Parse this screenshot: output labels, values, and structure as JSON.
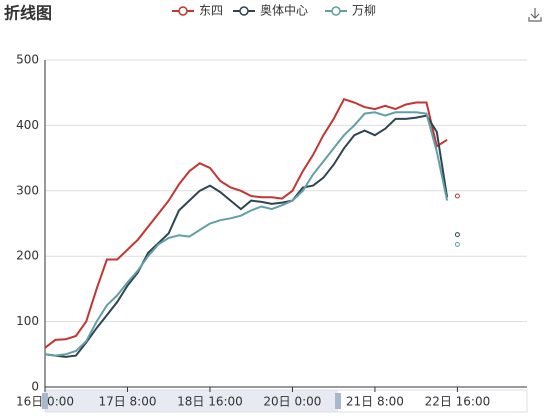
{
  "chart_data": {
    "type": "line",
    "title": "折线图",
    "x": [
      0,
      4,
      8,
      12,
      16,
      20,
      24,
      28,
      32,
      36,
      40,
      44,
      48,
      52,
      56,
      60,
      64,
      68,
      72,
      76,
      80,
      84,
      88,
      92,
      96,
      100,
      104,
      108,
      112,
      116,
      120,
      124,
      128,
      132,
      136,
      140,
      144,
      148,
      152,
      156,
      158,
      160
    ],
    "series": [
      {
        "name": "东四",
        "color": "#c23531",
        "values": [
          60,
          72,
          73,
          78,
          100,
          150,
          195,
          195,
          210,
          225,
          245,
          265,
          285,
          310,
          330,
          342,
          335,
          315,
          305,
          300,
          292,
          290,
          290,
          288,
          300,
          330,
          355,
          385,
          410,
          440,
          435,
          428,
          425,
          430,
          425,
          432,
          435,
          435,
          368,
          378,
          null,
          292
        ]
      },
      {
        "name": "奥体中心",
        "color": "#2f4554",
        "values": [
          50,
          48,
          46,
          48,
          68,
          90,
          110,
          130,
          155,
          175,
          205,
          220,
          235,
          270,
          285,
          300,
          308,
          298,
          285,
          272,
          285,
          283,
          280,
          282,
          285,
          305,
          308,
          320,
          340,
          365,
          385,
          392,
          385,
          395,
          410,
          410,
          412,
          415,
          390,
          290,
          null,
          233
        ]
      },
      {
        "name": "万柳",
        "color": "#61a0a8",
        "values": [
          50,
          48,
          50,
          55,
          70,
          100,
          125,
          140,
          160,
          178,
          200,
          218,
          228,
          232,
          230,
          240,
          250,
          255,
          258,
          262,
          270,
          276,
          272,
          278,
          285,
          300,
          325,
          345,
          365,
          385,
          400,
          418,
          420,
          415,
          420,
          420,
          420,
          418,
          360,
          285,
          null,
          218
        ]
      }
    ],
    "xlim": [
      0,
      187
    ],
    "xticks": [
      {
        "value": 0,
        "label": "16日 0:00"
      },
      {
        "value": 32,
        "label": "17日 8:00"
      },
      {
        "value": 64,
        "label": "18日 16:00"
      },
      {
        "value": 96,
        "label": "20日 0:00"
      },
      {
        "value": 128,
        "label": "21日 8:00"
      },
      {
        "value": 160,
        "label": "22日 16:00"
      }
    ],
    "ylim": [
      0,
      500
    ],
    "yticks": [
      0,
      100,
      200,
      300,
      400,
      500
    ],
    "grid": true
  }
}
